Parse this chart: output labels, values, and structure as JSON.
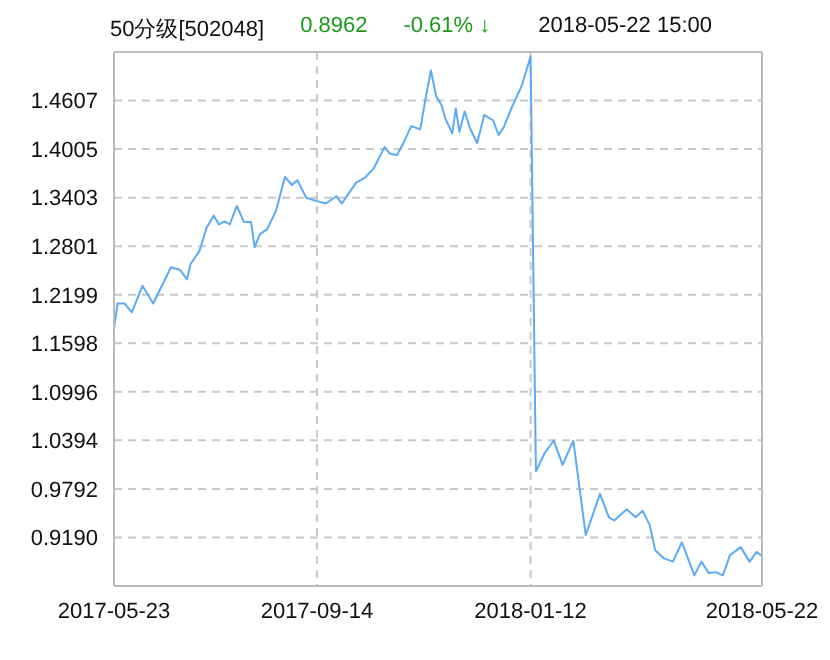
{
  "chart_data": {
    "type": "line",
    "title": "50分级[502048]",
    "annotations": [
      "0.8962",
      "-0.61% ↓",
      "2018-05-22 15:00"
    ],
    "x": [
      "2017-05-23",
      "2017-05-25",
      "2017-05-29",
      "2017-06-02",
      "2017-06-08",
      "2017-06-14",
      "2017-06-24",
      "2017-06-29",
      "2017-07-03",
      "2017-07-05",
      "2017-07-10",
      "2017-07-14",
      "2017-07-18",
      "2017-07-21",
      "2017-07-24",
      "2017-07-27",
      "2017-07-31",
      "2017-08-04",
      "2017-08-08",
      "2017-08-10",
      "2017-08-13",
      "2017-08-17",
      "2017-08-22",
      "2017-08-27",
      "2017-08-31",
      "2017-09-03",
      "2017-09-08",
      "2017-09-14",
      "2017-09-19",
      "2017-09-25",
      "2017-09-28",
      "2017-10-06",
      "2017-10-11",
      "2017-10-16",
      "2017-10-22",
      "2017-10-25",
      "2017-10-29",
      "2017-11-02",
      "2017-11-06",
      "2017-11-11",
      "2017-11-14",
      "2017-11-17",
      "2017-11-20",
      "2017-11-23",
      "2017-11-25",
      "2017-11-29",
      "2017-12-01",
      "2017-12-03",
      "2017-12-06",
      "2017-12-09",
      "2017-12-13",
      "2017-12-17",
      "2017-12-22",
      "2017-12-25",
      "2017-12-28",
      "2018-01-02",
      "2018-01-07",
      "2018-01-12",
      "2018-01-15",
      "2018-01-20",
      "2018-01-25",
      "2018-01-30",
      "2018-02-05",
      "2018-02-12",
      "2018-02-20",
      "2018-02-25",
      "2018-02-28",
      "2018-03-07",
      "2018-03-12",
      "2018-03-16",
      "2018-03-20",
      "2018-03-23",
      "2018-03-28",
      "2018-04-02",
      "2018-04-07",
      "2018-04-14",
      "2018-04-18",
      "2018-04-22",
      "2018-04-26",
      "2018-04-30",
      "2018-05-04",
      "2018-05-10",
      "2018-05-15",
      "2018-05-19",
      "2018-05-22"
    ],
    "series": [
      {
        "color": "#5aaaf5",
        "values": [
          1.178,
          1.209,
          1.209,
          1.198,
          1.231,
          1.209,
          1.254,
          1.251,
          1.239,
          1.258,
          1.274,
          1.303,
          1.318,
          1.307,
          1.311,
          1.307,
          1.33,
          1.31,
          1.31,
          1.279,
          1.295,
          1.301,
          1.324,
          1.366,
          1.356,
          1.362,
          1.34,
          1.336,
          1.333,
          1.342,
          1.333,
          1.359,
          1.365,
          1.377,
          1.403,
          1.395,
          1.393,
          1.41,
          1.429,
          1.425,
          1.463,
          1.498,
          1.466,
          1.455,
          1.439,
          1.42,
          1.451,
          1.422,
          1.447,
          1.426,
          1.408,
          1.443,
          1.436,
          1.418,
          1.428,
          1.455,
          1.479,
          1.515,
          1.001,
          1.024,
          1.039,
          1.009,
          1.039,
          0.922,
          0.973,
          0.944,
          0.94,
          0.954,
          0.944,
          0.952,
          0.934,
          0.903,
          0.893,
          0.889,
          0.913,
          0.872,
          0.889,
          0.875,
          0.876,
          0.872,
          0.897,
          0.907,
          0.889,
          0.901,
          0.8962
        ]
      }
    ],
    "xlim": [
      "2017-05-23",
      "2018-05-22"
    ],
    "xticks": [
      "2017-05-23",
      "2017-09-14",
      "2018-01-12",
      "2018-05-22"
    ],
    "ylim": [
      0.8588,
      1.5209
    ],
    "yticks": [
      {
        "value": 0.919,
        "label": "0.9190"
      },
      0.9792,
      1.0394,
      1.0996,
      1.1598,
      1.2199,
      1.2801,
      1.3403,
      1.4005,
      1.4607
    ],
    "grid": true,
    "legend": false,
    "marker": "none",
    "line_style": "solid"
  }
}
